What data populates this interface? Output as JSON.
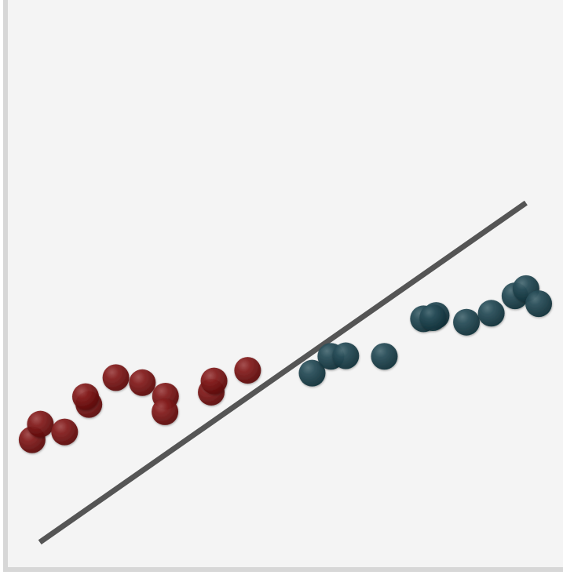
{
  "chart_data": {
    "type": "scatter",
    "title": "",
    "xlabel": "",
    "ylabel": "",
    "xlim": [
      0,
      100
    ],
    "ylim": [
      0,
      100
    ],
    "grid": false,
    "legend": "none",
    "series": [
      {
        "color": "#7a1414",
        "points": [
          {
            "x": 4.4,
            "y": 22.6
          },
          {
            "x": 5.9,
            "y": 25.4
          },
          {
            "x": 10.3,
            "y": 24.0
          },
          {
            "x": 14.7,
            "y": 28.9
          },
          {
            "x": 14.1,
            "y": 30.3
          },
          {
            "x": 19.6,
            "y": 33.7
          },
          {
            "x": 24.4,
            "y": 32.8
          },
          {
            "x": 28.6,
            "y": 30.4
          },
          {
            "x": 28.5,
            "y": 27.6
          },
          {
            "x": 36.9,
            "y": 31.1
          },
          {
            "x": 37.4,
            "y": 33.1
          },
          {
            "x": 43.5,
            "y": 35.0
          }
        ]
      },
      {
        "color": "#1f4651",
        "points": [
          {
            "x": 55.2,
            "y": 34.5
          },
          {
            "x": 58.6,
            "y": 37.5
          },
          {
            "x": 61.3,
            "y": 37.6
          },
          {
            "x": 68.3,
            "y": 37.5
          },
          {
            "x": 75.4,
            "y": 44.2
          },
          {
            "x": 77.7,
            "y": 44.8
          },
          {
            "x": 77.1,
            "y": 44.4
          },
          {
            "x": 83.2,
            "y": 43.6
          },
          {
            "x": 87.7,
            "y": 45.2
          },
          {
            "x": 92.0,
            "y": 48.3
          },
          {
            "x": 94.0,
            "y": 49.6
          },
          {
            "x": 96.3,
            "y": 46.9
          }
        ]
      }
    ],
    "fit_line": {
      "color": "#555555",
      "points": [
        {
          "x": 5.8,
          "y": 4.3
        },
        {
          "x": 94.0,
          "y": 64.9
        }
      ]
    }
  }
}
